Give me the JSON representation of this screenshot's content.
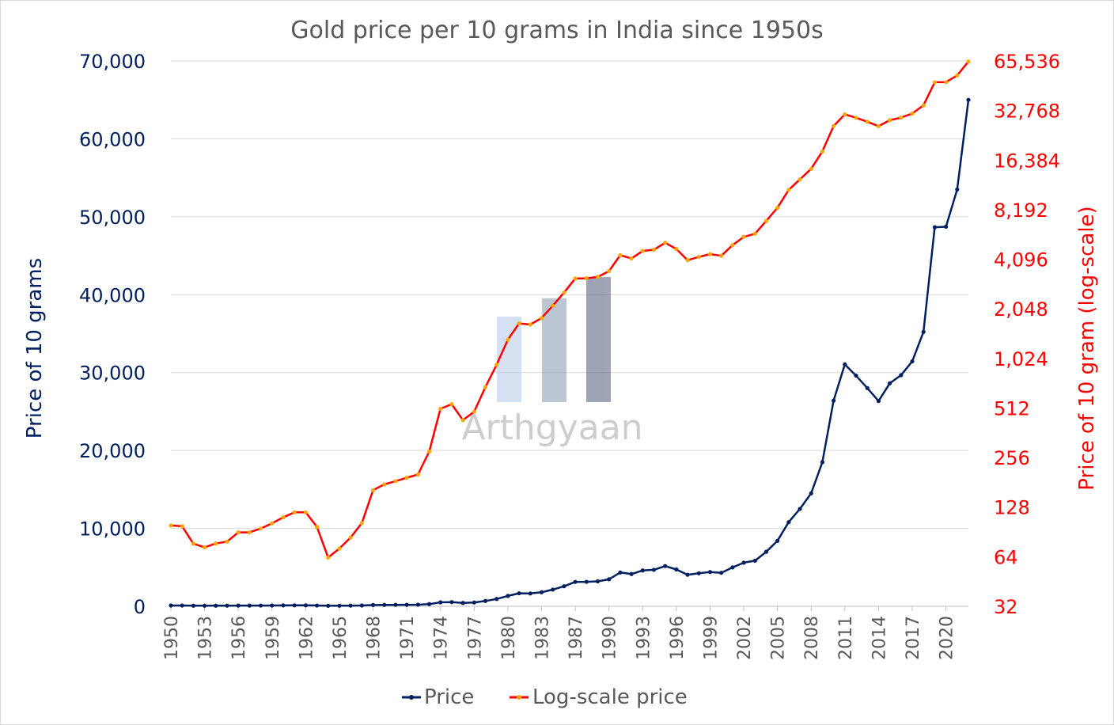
{
  "chart_data": {
    "type": "line",
    "title": "Gold price per 10 grams in India since 1950s",
    "xlabel": "",
    "ylabel": "Price of 10 grams",
    "y2label": "Price of 10 gram (log-scale)",
    "ylim": [
      0,
      70000
    ],
    "y2lim": [
      32,
      65536
    ],
    "y2scale": "log2",
    "yticks": [
      "0",
      "10,000",
      "20,000",
      "30,000",
      "40,000",
      "50,000",
      "60,000",
      "70,000"
    ],
    "y2ticks": [
      "32",
      "64",
      "128",
      "256",
      "512",
      "1,024",
      "2,048",
      "4,096",
      "8,192",
      "16,384",
      "32,768",
      "65,536"
    ],
    "xtick_labels": [
      "1950",
      "1953",
      "1956",
      "1959",
      "1962",
      "1965",
      "1968",
      "1971",
      "1974",
      "1977",
      "1980",
      "1983",
      "1987",
      "1990",
      "1993",
      "1996",
      "1999",
      "2002",
      "2005",
      "2008",
      "2011",
      "2014",
      "2017",
      "2020"
    ],
    "categories": [
      1950,
      1951,
      1952,
      1953,
      1954,
      1955,
      1956,
      1957,
      1958,
      1959,
      1960,
      1961,
      1962,
      1963,
      1964,
      1965,
      1966,
      1967,
      1968,
      1969,
      1970,
      1971,
      1972,
      1973,
      1974,
      1975,
      1976,
      1977,
      1978,
      1979,
      1980,
      1981,
      1982,
      1983,
      1985,
      1986,
      1987,
      1988,
      1989,
      1990,
      1991,
      1992,
      1993,
      1994,
      1995,
      1996,
      1997,
      1998,
      1999,
      2000,
      2001,
      2002,
      2003,
      2004,
      2005,
      2006,
      2007,
      2008,
      2009,
      2010,
      2011,
      2012,
      2013,
      2014,
      2015,
      2016,
      2017,
      2018,
      2019,
      2020,
      2021,
      2022
    ],
    "series": [
      {
        "name": "Price",
        "color": "#002060",
        "axis": "left",
        "values": [
          99,
          98,
          76.81,
          73,
          77,
          79,
          90,
          90,
          95,
          102,
          111,
          119,
          119,
          97,
          63.25,
          71.75,
          83.75,
          102.5,
          162,
          176,
          184,
          193,
          202,
          278.5,
          506,
          540,
          432,
          486,
          685,
          937,
          1330,
          1670,
          1645,
          1800,
          2140,
          2570,
          3130,
          3140,
          3200,
          3466,
          4334,
          4140,
          4598,
          4680,
          5160,
          4725,
          4045,
          4234,
          4400,
          4300,
          4990,
          5600,
          5850,
          7000,
          8400,
          10800,
          12500,
          14500,
          18500,
          26400,
          31050,
          29600,
          28006,
          26343,
          28623,
          29667,
          31438,
          35220,
          48651,
          48720,
          53500,
          65000
        ]
      },
      {
        "name": "Log-scale price",
        "color": "#ff0000",
        "axis": "right",
        "values": [
          99,
          98,
          76.81,
          73,
          77,
          79,
          90,
          90,
          95,
          102,
          111,
          119,
          119,
          97,
          63.25,
          71.75,
          83.75,
          102.5,
          162,
          176,
          184,
          193,
          202,
          278.5,
          506,
          540,
          432,
          486,
          685,
          937,
          1330,
          1670,
          1645,
          1800,
          2140,
          2570,
          3130,
          3140,
          3200,
          3466,
          4334,
          4140,
          4598,
          4680,
          5160,
          4725,
          4045,
          4234,
          4400,
          4300,
          4990,
          5600,
          5850,
          7000,
          8400,
          10800,
          12500,
          14500,
          18500,
          26400,
          31050,
          29600,
          28006,
          26343,
          28623,
          29667,
          31438,
          35220,
          48651,
          48720,
          53500,
          65000
        ]
      }
    ],
    "legend": {
      "placement": "bottom",
      "entries": [
        "Price",
        "Log-scale price"
      ]
    },
    "grid": true,
    "watermark": "Arthgyaan"
  }
}
